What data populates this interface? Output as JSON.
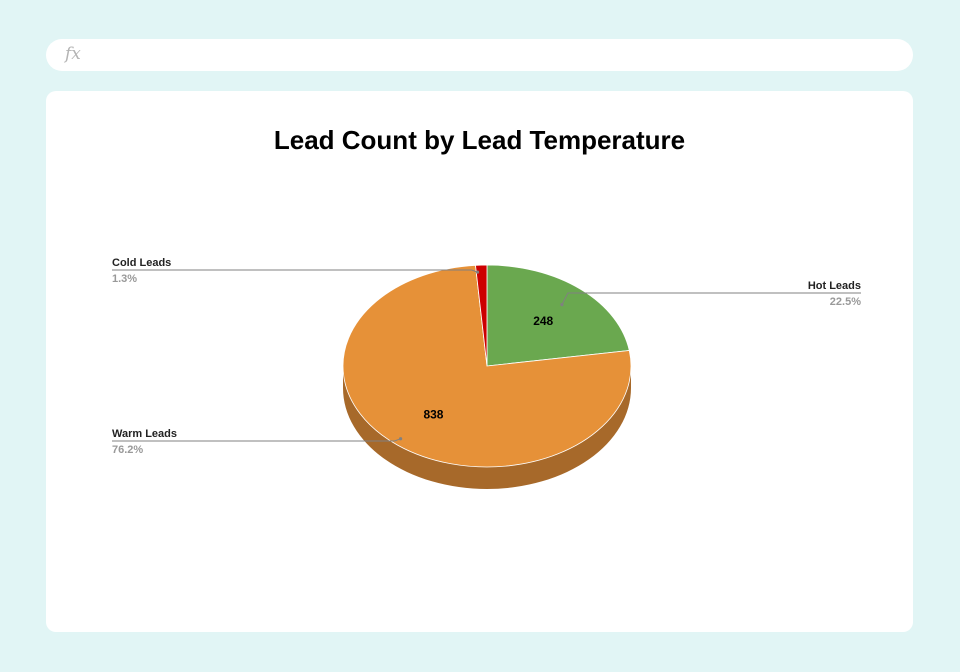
{
  "formula_bar": {
    "fx_label": "fx"
  },
  "chart_data": {
    "type": "pie",
    "title": "Lead Count by Lead Temperature",
    "three_d": true,
    "slices": [
      {
        "label": "Hot Leads",
        "value": 248,
        "percent_label": "22.5%",
        "value_label": "248",
        "color": "#6aa84f",
        "side_color": "#4f7e3b"
      },
      {
        "label": "Warm Leads",
        "value": 838,
        "percent_label": "76.2%",
        "value_label": "838",
        "color": "#e69138",
        "side_color": "#a7692a"
      },
      {
        "label": "Cold Leads",
        "value": 14,
        "percent_label": "1.3%",
        "value_label": "",
        "color": "#cc0000",
        "side_color": "#8f0000"
      }
    ]
  }
}
